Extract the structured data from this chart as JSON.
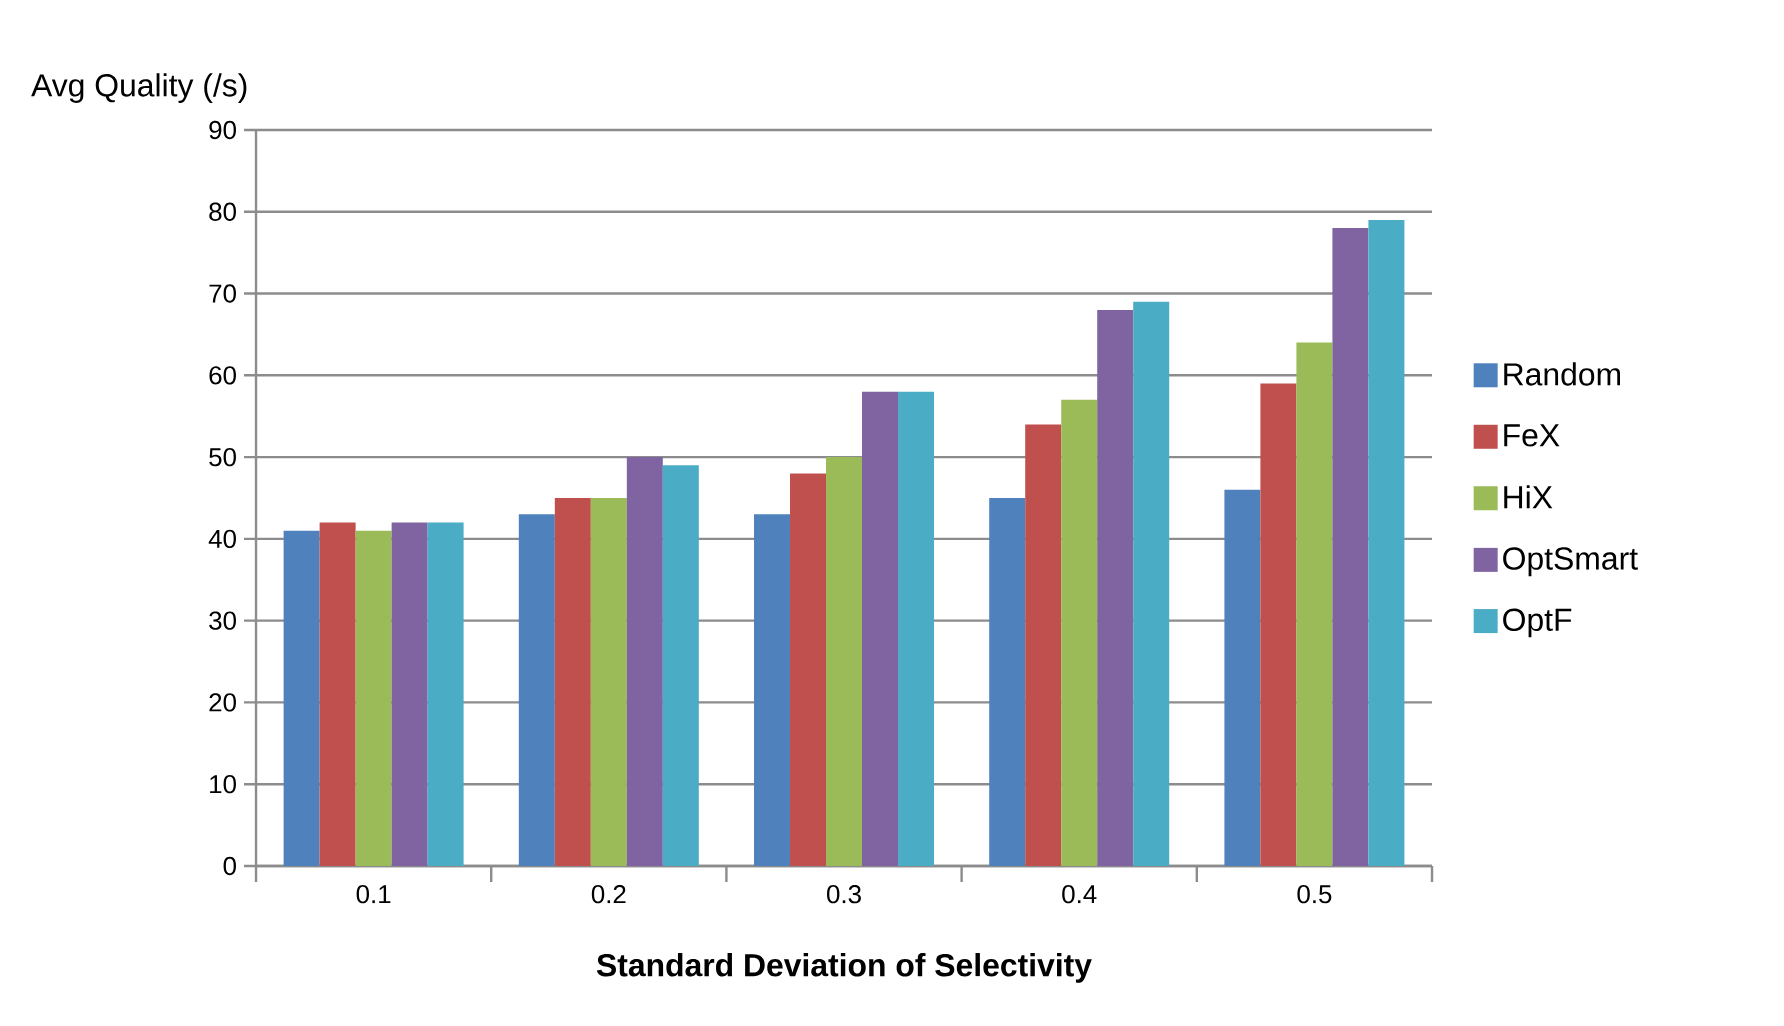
{
  "chart_data": {
    "type": "bar",
    "xlabel": "Standard Deviation of Selectivity",
    "ylabel": "Avg Quality (/s)",
    "categories": [
      "0.1",
      "0.2",
      "0.3",
      "0.4",
      "0.5"
    ],
    "series": [
      {
        "name": "Random",
        "color": "#4f81bd",
        "values": [
          41,
          43,
          43,
          45,
          46
        ]
      },
      {
        "name": "FeX",
        "color": "#c0504d",
        "values": [
          42,
          45,
          48,
          54,
          59
        ]
      },
      {
        "name": "HiX",
        "color": "#9bbb59",
        "values": [
          41,
          45,
          50,
          57,
          64
        ]
      },
      {
        "name": "OptSmart",
        "color": "#8064a2",
        "values": [
          42,
          50,
          58,
          68,
          78
        ]
      },
      {
        "name": "OptF",
        "color": "#4bacc6",
        "values": [
          42,
          49,
          58,
          69,
          79
        ]
      }
    ],
    "ylim": [
      0,
      90
    ],
    "yticks": [
      0,
      10,
      20,
      30,
      40,
      50,
      60,
      70,
      80,
      90
    ],
    "grid": "y",
    "legend": "right"
  }
}
